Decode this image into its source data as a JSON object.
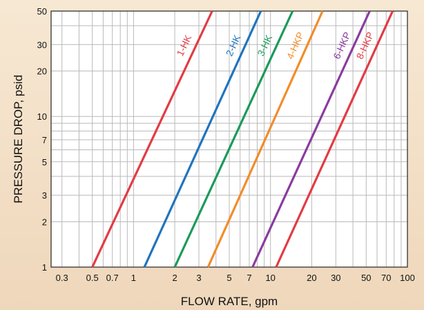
{
  "chart_data": {
    "type": "line",
    "xlabel": "FLOW RATE, gpm",
    "ylabel": "PRESSURE DROP, psid",
    "x_scale": "log",
    "y_scale": "log",
    "xlim": [
      0.25,
      100
    ],
    "ylim": [
      1,
      50
    ],
    "x_ticks": [
      {
        "value": 0.3,
        "label": "0.3"
      },
      {
        "value": 0.5,
        "label": "0.5"
      },
      {
        "value": 0.7,
        "label": "0.7"
      },
      {
        "value": 1,
        "label": "1"
      },
      {
        "value": 2,
        "label": "2"
      },
      {
        "value": 3,
        "label": "3"
      },
      {
        "value": 5,
        "label": "5"
      },
      {
        "value": 7,
        "label": "7"
      },
      {
        "value": 10,
        "label": "10"
      },
      {
        "value": 20,
        "label": "20"
      },
      {
        "value": 30,
        "label": "30"
      },
      {
        "value": 50,
        "label": "50"
      },
      {
        "value": 70,
        "label": "70"
      },
      {
        "value": 100,
        "label": "100"
      }
    ],
    "y_ticks": [
      {
        "value": 1,
        "label": "1"
      },
      {
        "value": 2,
        "label": "2"
      },
      {
        "value": 3,
        "label": "3"
      },
      {
        "value": 5,
        "label": "5"
      },
      {
        "value": 7,
        "label": "7"
      },
      {
        "value": 10,
        "label": "10"
      },
      {
        "value": 20,
        "label": "20"
      },
      {
        "value": 30,
        "label": "30"
      },
      {
        "value": 50,
        "label": "50"
      }
    ],
    "x_minor_grid": [
      0.3,
      0.4,
      0.5,
      0.6,
      0.7,
      0.8,
      0.9,
      1,
      2,
      3,
      4,
      5,
      6,
      7,
      8,
      9,
      10,
      20,
      30,
      40,
      50,
      60,
      70,
      80,
      90
    ],
    "y_minor_grid": [
      2,
      3,
      4,
      5,
      6,
      7,
      8,
      9,
      10,
      20,
      30,
      40
    ],
    "grid": true,
    "series": [
      {
        "name": "1-HK",
        "color": "#e23b44",
        "x": [
          0.5,
          3.75
        ],
        "y": [
          1,
          50
        ]
      },
      {
        "name": "2-HK",
        "color": "#1f74bf",
        "x": [
          1.2,
          8.5
        ],
        "y": [
          1,
          50
        ]
      },
      {
        "name": "3-HK",
        "color": "#1a9a5a",
        "x": [
          2.0,
          14.5
        ],
        "y": [
          1,
          50
        ]
      },
      {
        "name": "4-HKP",
        "color": "#f28c2a",
        "x": [
          3.5,
          24.0
        ],
        "y": [
          1,
          50
        ]
      },
      {
        "name": "6-HKP",
        "color": "#8a3c9e",
        "x": [
          7.4,
          53.0
        ],
        "y": [
          1,
          50
        ]
      },
      {
        "name": "8-HKP",
        "color": "#e23b44",
        "x": [
          11.0,
          78.0
        ],
        "y": [
          1,
          50
        ]
      }
    ]
  }
}
